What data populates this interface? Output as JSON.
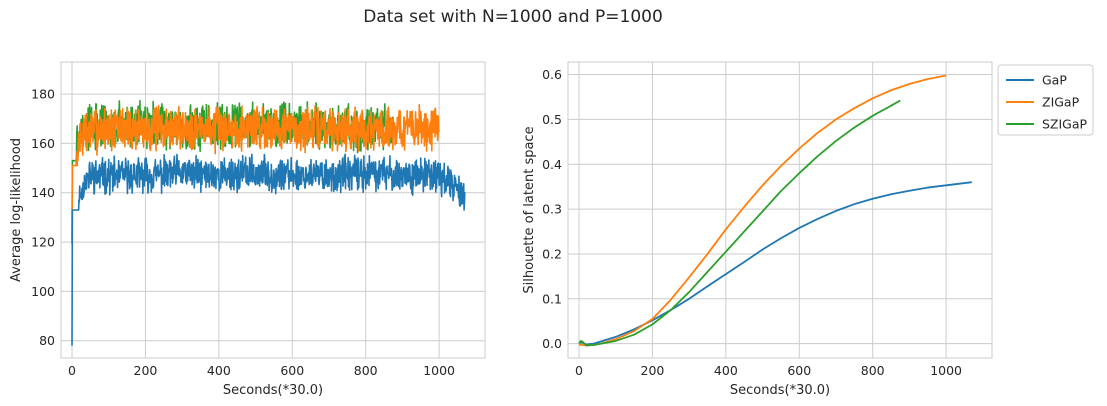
{
  "figure": {
    "title": "Data set with N=1000 and P=1000"
  },
  "colors": {
    "GaP": "#1f77b4",
    "ZIGaP": "#ff7f0e",
    "SZIGaP": "#2ca02c",
    "grid": "#cccccc",
    "text": "#262626"
  },
  "chart_data": [
    {
      "type": "line",
      "title": "",
      "xlabel": "Seconds(*30.0)",
      "ylabel": "Average log-likelihood",
      "xlim": [
        -30,
        1125
      ],
      "ylim": [
        73,
        193
      ],
      "xticks": [
        0,
        200,
        400,
        600,
        800,
        1000
      ],
      "yticks": [
        80,
        100,
        120,
        140,
        160,
        180
      ],
      "grid": true,
      "legend": "none",
      "series": [
        {
          "name": "SZIGaP",
          "color": "#2ca02c",
          "noisy": true,
          "x_end": 875,
          "init": 120,
          "tau": 5,
          "mean": 167.0,
          "spread": 14,
          "min": 153,
          "max": 182,
          "seed": 3,
          "x": [
            0,
            5,
            10,
            20,
            50,
            100,
            200,
            300,
            400,
            500,
            600,
            700,
            800,
            875
          ],
          "y": [
            120,
            150,
            158,
            165,
            167,
            167,
            168,
            167,
            167,
            168,
            167,
            167,
            166,
            167
          ]
        },
        {
          "name": "ZIGaP",
          "color": "#ff7f0e",
          "noisy": true,
          "x_end": 1000,
          "init": 119,
          "tau": 6,
          "mean": 166.0,
          "spread": 14,
          "min": 151,
          "max": 187,
          "seed": 7,
          "x": [
            0,
            5,
            10,
            20,
            50,
            100,
            200,
            300,
            400,
            500,
            600,
            700,
            800,
            900,
            1000
          ],
          "y": [
            119,
            148,
            157,
            163,
            165,
            166,
            166,
            166,
            166,
            167,
            166,
            166,
            166,
            166,
            166
          ]
        },
        {
          "name": "GaP",
          "color": "#1f77b4",
          "noisy": true,
          "x_end": 1070,
          "init": 78,
          "tau": 8,
          "mean": 147.5,
          "spread": 11,
          "min": 133,
          "max": 159,
          "seed": 11,
          "x": [
            0,
            5,
            10,
            20,
            50,
            100,
            200,
            300,
            400,
            500,
            600,
            700,
            800,
            900,
            1000,
            1070
          ],
          "y": [
            78,
            115,
            130,
            142,
            147,
            147,
            147,
            148,
            147,
            148,
            147,
            147,
            148,
            147,
            147,
            139
          ]
        }
      ]
    },
    {
      "type": "line",
      "title": "",
      "xlabel": "Seconds(*30.0)",
      "ylabel": "Silhouette of latent space",
      "xlim": [
        -30,
        1125
      ],
      "ylim": [
        -0.032,
        0.628
      ],
      "xticks": [
        0,
        200,
        400,
        600,
        800,
        1000
      ],
      "yticks": [
        0.0,
        0.1,
        0.2,
        0.3,
        0.4,
        0.5,
        0.6
      ],
      "ytick_labels": [
        "0.0",
        "0.1",
        "0.2",
        "0.3",
        "0.4",
        "0.5",
        "0.6"
      ],
      "grid": true,
      "legend": "outside upper right",
      "series": [
        {
          "name": "GaP",
          "color": "#1f77b4",
          "x": [
            0,
            10,
            20,
            40,
            60,
            100,
            150,
            200,
            250,
            300,
            350,
            400,
            450,
            500,
            550,
            600,
            650,
            700,
            750,
            800,
            850,
            900,
            950,
            1000,
            1070
          ],
          "y": [
            0.003,
            0.002,
            -0.002,
            0.0,
            0.005,
            0.015,
            0.032,
            0.052,
            0.075,
            0.1,
            0.128,
            0.155,
            0.182,
            0.21,
            0.235,
            0.258,
            0.278,
            0.296,
            0.311,
            0.323,
            0.333,
            0.341,
            0.348,
            0.353,
            0.36
          ]
        },
        {
          "name": "ZIGaP",
          "color": "#ff7f0e",
          "x": [
            0,
            10,
            20,
            40,
            60,
            100,
            150,
            200,
            250,
            300,
            350,
            400,
            450,
            500,
            550,
            600,
            650,
            700,
            750,
            800,
            850,
            900,
            950,
            1000
          ],
          "y": [
            -0.002,
            -0.003,
            -0.004,
            -0.003,
            0.0,
            0.01,
            0.028,
            0.055,
            0.098,
            0.148,
            0.2,
            0.255,
            0.305,
            0.353,
            0.396,
            0.435,
            0.47,
            0.5,
            0.525,
            0.547,
            0.565,
            0.579,
            0.59,
            0.598
          ]
        },
        {
          "name": "SZIGaP",
          "color": "#2ca02c",
          "x": [
            0,
            5,
            10,
            20,
            40,
            60,
            100,
            150,
            200,
            250,
            300,
            350,
            400,
            450,
            500,
            550,
            600,
            650,
            700,
            750,
            800,
            875
          ],
          "y": [
            0.0,
            0.006,
            0.004,
            -0.004,
            -0.003,
            0.0,
            0.006,
            0.02,
            0.043,
            0.075,
            0.115,
            0.16,
            0.205,
            0.25,
            0.295,
            0.34,
            0.38,
            0.418,
            0.452,
            0.482,
            0.508,
            0.542
          ]
        }
      ]
    }
  ]
}
